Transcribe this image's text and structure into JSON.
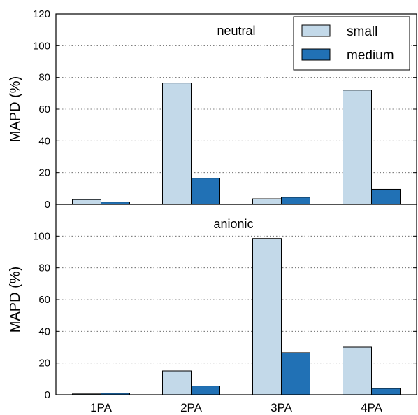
{
  "chart_data": [
    {
      "type": "bar",
      "title": "neutral",
      "ylabel": "MAPD (%)",
      "ylim": [
        0,
        120
      ],
      "yticks": [
        0,
        20,
        40,
        60,
        80,
        100,
        120
      ],
      "categories": [
        "1PA",
        "2PA",
        "3PA",
        "4PA"
      ],
      "series": [
        {
          "name": "small",
          "color": "#c3d9e9",
          "values": [
            3,
            76.5,
            3.5,
            72
          ]
        },
        {
          "name": "medium",
          "color": "#2171b5",
          "values": [
            1.5,
            16.5,
            4.5,
            9.5
          ]
        }
      ],
      "grid": true,
      "legend": "top-right"
    },
    {
      "type": "bar",
      "title": "anionic",
      "ylabel": "MAPD (%)",
      "ylim": [
        0,
        120
      ],
      "yticks": [
        0,
        20,
        40,
        60,
        80,
        100
      ],
      "categories": [
        "1PA",
        "2PA",
        "3PA",
        "4PA"
      ],
      "series": [
        {
          "name": "small",
          "color": "#c3d9e9",
          "values": [
            0.5,
            15,
            98.5,
            30
          ]
        },
        {
          "name": "medium",
          "color": "#2171b5",
          "values": [
            1,
            5.5,
            26.5,
            4
          ]
        }
      ],
      "grid": true
    }
  ]
}
